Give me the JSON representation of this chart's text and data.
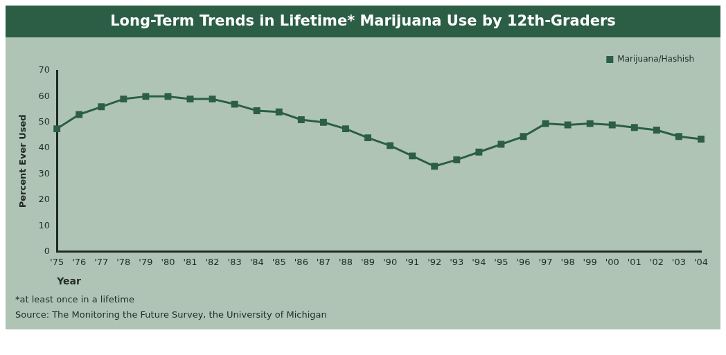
{
  "chart_data": {
    "type": "line",
    "title": "Long-Term Trends in Lifetime* Marijuana Use by 12th-Graders",
    "xlabel": "Year",
    "ylabel": "Percent Ever Used",
    "categories": [
      "'75",
      "'76",
      "'77",
      "'78",
      "'79",
      "'80",
      "'81",
      "'82",
      "'83",
      "'84",
      "'85",
      "'86",
      "'87",
      "'88",
      "'89",
      "'90",
      "'91",
      "'92",
      "'93",
      "'94",
      "'95",
      "'96",
      "'97",
      "'98",
      "'99",
      "'00",
      "'01",
      "'02",
      "'03",
      "'04"
    ],
    "series": [
      {
        "name": "Marijuana/Hashish",
        "color": "#2b5e45",
        "values": [
          47.5,
          53,
          56,
          59,
          60,
          60,
          59,
          59,
          57,
          54.5,
          54,
          51,
          50,
          47.5,
          44,
          41,
          37,
          33,
          35.5,
          38.5,
          41.5,
          44.5,
          49.5,
          49,
          49.5,
          49,
          48,
          47,
          44.5,
          43.5
        ]
      }
    ],
    "ylim": [
      0,
      70
    ],
    "yticks": [
      0,
      10,
      20,
      30,
      40,
      50,
      60,
      70
    ],
    "grid": false,
    "legend": "top right",
    "marker": "square",
    "line_style": "solid",
    "annotations": [
      "*at least once in a lifetime",
      "Source: The Monitoring the Future Survey, the University of Michigan"
    ]
  }
}
